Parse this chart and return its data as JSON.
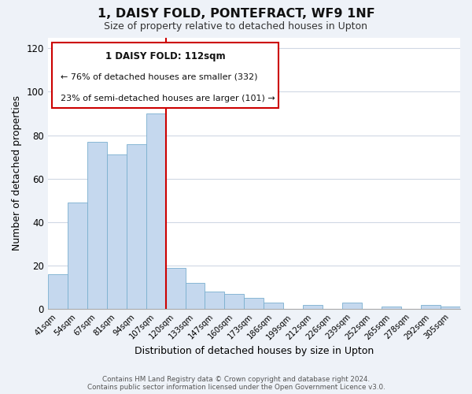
{
  "title": "1, DAISY FOLD, PONTEFRACT, WF9 1NF",
  "subtitle": "Size of property relative to detached houses in Upton",
  "xlabel": "Distribution of detached houses by size in Upton",
  "ylabel": "Number of detached properties",
  "bar_color": "#c5d8ee",
  "bar_edge_color": "#7aafcf",
  "bins": [
    "41sqm",
    "54sqm",
    "67sqm",
    "81sqm",
    "94sqm",
    "107sqm",
    "120sqm",
    "133sqm",
    "147sqm",
    "160sqm",
    "173sqm",
    "186sqm",
    "199sqm",
    "212sqm",
    "226sqm",
    "239sqm",
    "252sqm",
    "265sqm",
    "278sqm",
    "292sqm",
    "305sqm"
  ],
  "values": [
    16,
    49,
    77,
    71,
    76,
    90,
    19,
    12,
    8,
    7,
    5,
    3,
    0,
    2,
    0,
    3,
    0,
    1,
    0,
    2,
    1
  ],
  "ylim": [
    0,
    125
  ],
  "yticks": [
    0,
    20,
    40,
    60,
    80,
    100,
    120
  ],
  "redline_x": 5.5,
  "annotation_title": "1 DAISY FOLD: 112sqm",
  "annotation_line1": "← 76% of detached houses are smaller (332)",
  "annotation_line2": "23% of semi-detached houses are larger (101) →",
  "footer1": "Contains HM Land Registry data © Crown copyright and database right 2024.",
  "footer2": "Contains public sector information licensed under the Open Government Licence v3.0.",
  "background_color": "#eef2f8",
  "plot_background": "#ffffff",
  "annotation_box_color": "#ffffff",
  "annotation_box_edge": "#cc0000",
  "redline_color": "#cc0000",
  "grid_color": "#d0d8e4"
}
